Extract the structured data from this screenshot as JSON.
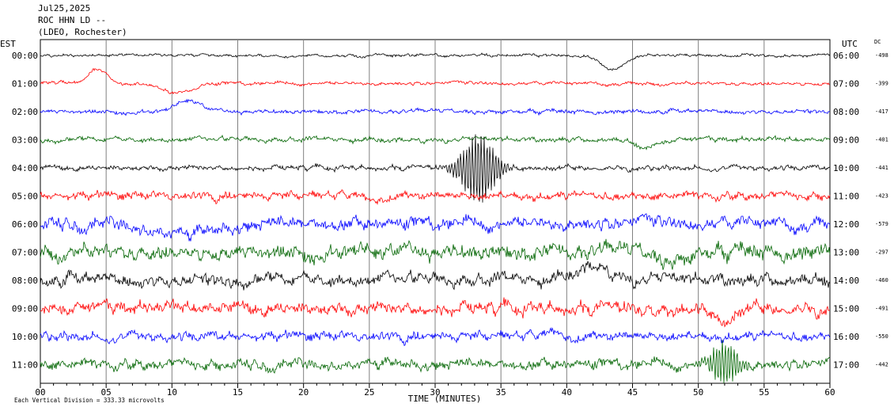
{
  "header": {
    "line1": "Jul25,2025",
    "line2": "ROC HHN LD --",
    "line3": "(LDEO, Rochester)"
  },
  "left_axis_label": "EST",
  "right_axis_label": "UTC",
  "dc_label": "DC",
  "footer": {
    "scale_note": "Each Vertical Division =  333.33 microvolts",
    "xlabel": "TIME (MINUTES)"
  },
  "colors": {
    "black": "#000000",
    "red": "#ff0000",
    "blue": "#0000ff",
    "green": "#006400",
    "grid": "#808080"
  },
  "chart_data": {
    "type": "line",
    "xlabel": "TIME (MINUTES)",
    "xlim": [
      0,
      60
    ],
    "x_ticks": [
      "00",
      "05",
      "10",
      "15",
      "20",
      "25",
      "30",
      "35",
      "40",
      "45",
      "50",
      "55",
      "60"
    ],
    "traces": [
      {
        "est": "00:00",
        "utc": "06:00",
        "dc": "-498",
        "color": "black",
        "noise": 0.12,
        "events": [
          {
            "t": 43.5,
            "amp": 2.0,
            "dur": 1.5
          }
        ]
      },
      {
        "est": "01:00",
        "utc": "07:00",
        "dc": "-399",
        "color": "red",
        "noise": 0.15,
        "events": [
          {
            "t": 4.3,
            "amp": -2.0,
            "dur": 1.2
          },
          {
            "t": 10.5,
            "amp": 1.2,
            "dur": 2.0
          }
        ]
      },
      {
        "est": "02:00",
        "utc": "08:00",
        "dc": "-417",
        "color": "blue",
        "noise": 0.18,
        "events": [
          {
            "t": 11.3,
            "amp": -1.6,
            "dur": 1.5
          }
        ]
      },
      {
        "est": "03:00",
        "utc": "09:00",
        "dc": "-401",
        "color": "green",
        "noise": 0.22,
        "events": [
          {
            "t": 46.0,
            "amp": 1.0,
            "dur": 1.5
          }
        ]
      },
      {
        "est": "04:00",
        "utc": "10:00",
        "dc": "-441",
        "color": "black",
        "noise": 0.22,
        "events": [
          {
            "t": 33.3,
            "amp": 5.0,
            "dur": 1.8
          }
        ]
      },
      {
        "est": "05:00",
        "utc": "11:00",
        "dc": "-423",
        "color": "red",
        "noise": 0.35,
        "events": [
          {
            "t": 25.0,
            "amp": 1.0,
            "dur": 1.0
          }
        ]
      },
      {
        "est": "06:00",
        "utc": "12:00",
        "dc": "-579",
        "color": "blue",
        "noise": 0.55,
        "events": [
          {
            "t": 11.0,
            "amp": 1.5,
            "dur": 4.0
          }
        ]
      },
      {
        "est": "07:00",
        "utc": "13:00",
        "dc": "-297",
        "color": "green",
        "noise": 0.65,
        "events": [
          {
            "t": 48.0,
            "amp": 1.2,
            "dur": 2.0
          }
        ]
      },
      {
        "est": "08:00",
        "utc": "14:00",
        "dc": "-460",
        "color": "black",
        "noise": 0.55,
        "events": [
          {
            "t": 42.0,
            "amp": -2.0,
            "dur": 2.5
          }
        ]
      },
      {
        "est": "09:00",
        "utc": "15:00",
        "dc": "-491",
        "color": "red",
        "noise": 0.55,
        "events": [
          {
            "t": 52.0,
            "amp": 2.0,
            "dur": 1.0
          }
        ]
      },
      {
        "est": "10:00",
        "utc": "16:00",
        "dc": "-550",
        "color": "blue",
        "noise": 0.4,
        "events": []
      },
      {
        "est": "11:00",
        "utc": "17:00",
        "dc": "-442",
        "color": "green",
        "noise": 0.45,
        "events": [
          {
            "t": 52.0,
            "amp": -3.0,
            "dur": 1.5
          }
        ]
      }
    ]
  }
}
